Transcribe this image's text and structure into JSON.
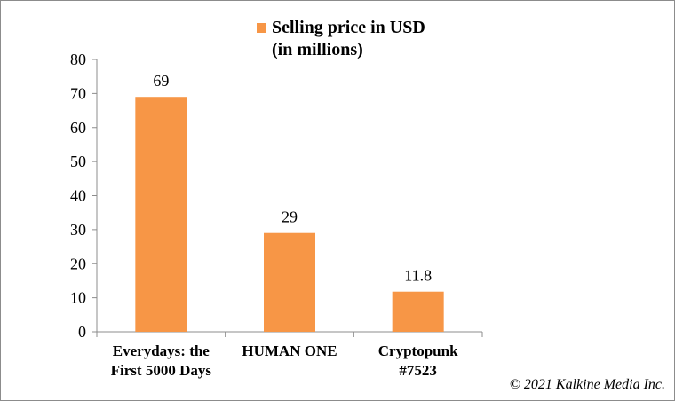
{
  "chart_data": {
    "type": "bar",
    "categories": [
      [
        "Everydays: the",
        "First 5000 Days"
      ],
      [
        "HUMAN ONE"
      ],
      [
        "Cryptopunk",
        "#7523"
      ]
    ],
    "series": [
      {
        "name": "Selling price in USD\n(in millions)",
        "values": [
          69,
          29,
          11.8
        ],
        "color": "#f79646"
      }
    ],
    "data_labels": [
      "69",
      "29",
      "11.8"
    ],
    "ylim": [
      0,
      80
    ],
    "yticks": [
      0,
      10,
      20,
      30,
      40,
      50,
      60,
      70,
      80
    ],
    "grid": false,
    "legend_position": "top"
  },
  "copyright": "© 2021 Kalkine Media Inc."
}
